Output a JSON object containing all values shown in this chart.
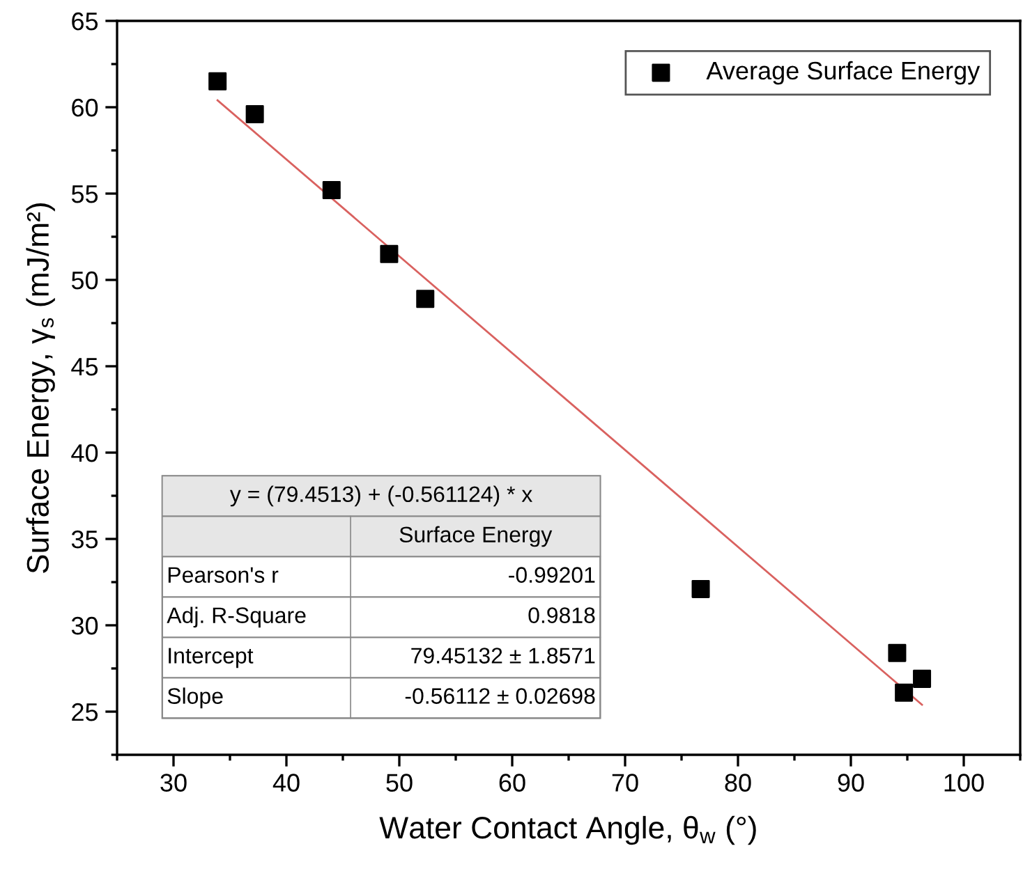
{
  "chart_data": {
    "type": "scatter",
    "xlabel": "Water Contact Angle, θ$_{w}$ (°)",
    "ylabel": "Surface Energy, γ$_{s}$ (mJ/m²)",
    "x": [
      33.9,
      37.2,
      44.0,
      49.1,
      52.3,
      76.7,
      94.1,
      94.7,
      96.3
    ],
    "series": [
      {
        "name": "Average Surface Energy",
        "color": "#000000",
        "marker": "square",
        "values": [
          61.5,
          59.6,
          55.2,
          51.5,
          48.9,
          32.1,
          28.4,
          26.1,
          26.9
        ]
      },
      {
        "type": "line",
        "color": "#d9615f",
        "x": [
          33.9,
          96.3
        ],
        "values": [
          60.4,
          25.4
        ]
      }
    ],
    "xlim": [
      25,
      105
    ],
    "xticks": [
      30,
      40,
      50,
      60,
      70,
      80,
      90,
      100
    ],
    "ylim": [
      22.5,
      65
    ],
    "yticks": [
      25,
      30,
      35,
      40,
      45,
      50,
      55,
      60,
      65
    ],
    "legend": "top right",
    "grid": false,
    "annotations": [
      "y = (79.4513) + (-0.561124) * x",
      "Surface Energy",
      "Pearson's r",
      "-0.99201",
      "Adj. R-Square",
      "0.9818",
      "Intercept",
      "79.45132 ± 1.8571",
      "Slope",
      "-0.56112 ± 0.02698"
    ]
  }
}
